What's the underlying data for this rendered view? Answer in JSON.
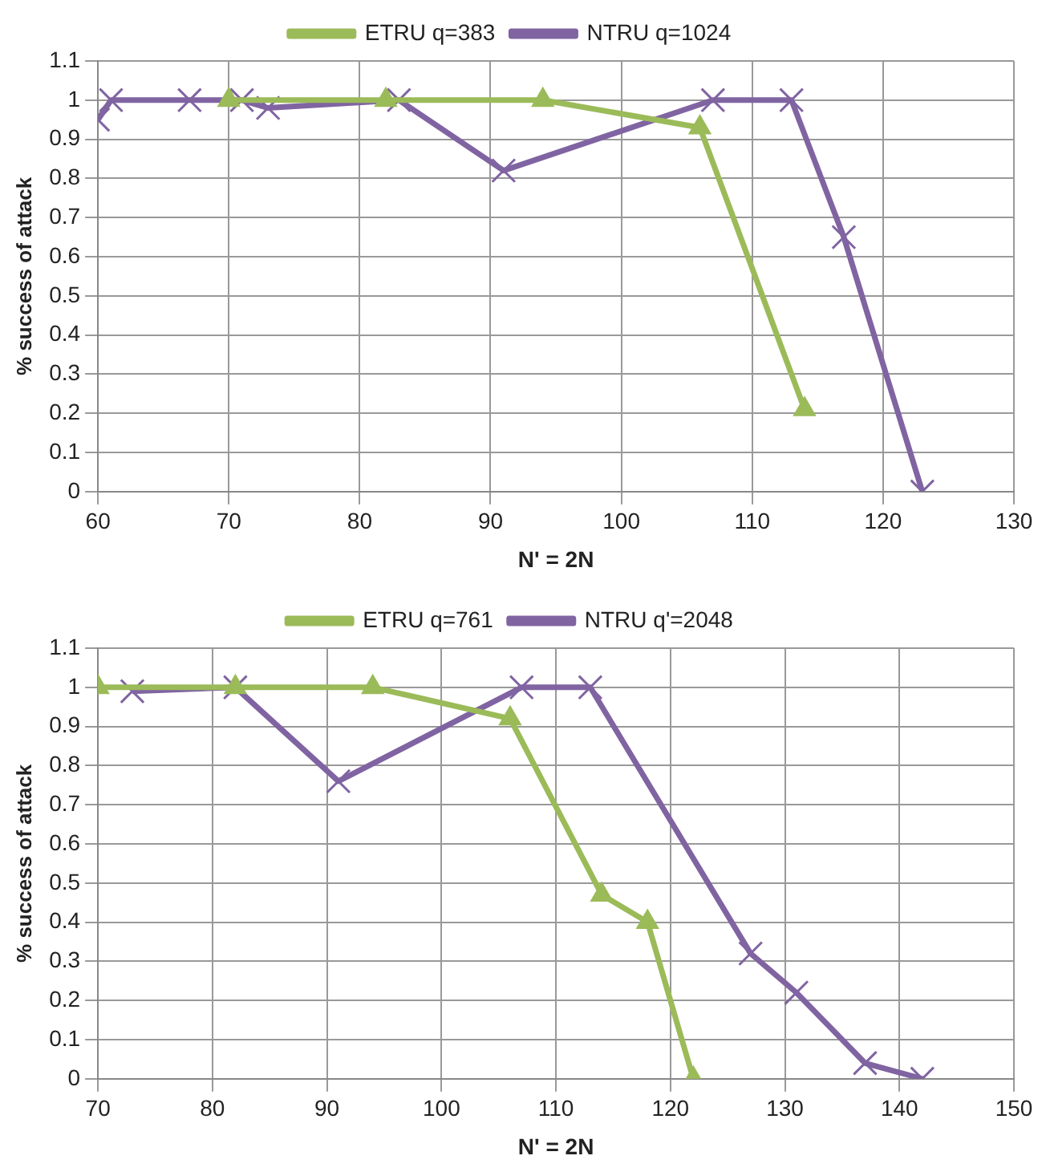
{
  "chart_data": [
    {
      "type": "line",
      "xlabel": "N' = 2N",
      "ylabel": "% success of attack",
      "legend": "top",
      "grid": true,
      "xlim": [
        60,
        130
      ],
      "xticks": [
        60,
        70,
        80,
        90,
        100,
        110,
        120,
        130
      ],
      "ylim": [
        0,
        1.1
      ],
      "yticks": [
        0,
        0.1,
        0.2,
        0.3,
        0.4,
        0.5,
        0.6,
        0.7,
        0.8,
        0.9,
        1,
        1.1
      ],
      "series": [
        {
          "name": "ETRU q=383",
          "color": "#9bbb59",
          "marker": "triangle",
          "x": [
            70,
            82,
            94,
            106,
            114
          ],
          "values": [
            1,
            1,
            1,
            0.93,
            0.21
          ]
        },
        {
          "name": "NTRU q=1024",
          "color": "#8064a2",
          "marker": "cross",
          "x": [
            60,
            61,
            67,
            71,
            73,
            83,
            91,
            107,
            113,
            117,
            123
          ],
          "values": [
            0.95,
            1,
            1,
            1,
            0.98,
            1,
            0.82,
            1,
            1,
            0.65,
            0
          ]
        }
      ]
    },
    {
      "type": "line",
      "xlabel": "N' = 2N",
      "ylabel": "% success of attack",
      "legend": "top",
      "grid": true,
      "xlim": [
        70,
        150
      ],
      "xticks": [
        70,
        80,
        90,
        100,
        110,
        120,
        130,
        140,
        150
      ],
      "ylim": [
        0,
        1.1
      ],
      "yticks": [
        0,
        0.1,
        0.2,
        0.3,
        0.4,
        0.5,
        0.6,
        0.7,
        0.8,
        0.9,
        1,
        1.1
      ],
      "series": [
        {
          "name": "ETRU q=761",
          "color": "#9bbb59",
          "marker": "triangle",
          "x": [
            70,
            82,
            94,
            106,
            114,
            118,
            122
          ],
          "values": [
            1,
            1,
            1,
            0.92,
            0.47,
            0.4,
            0
          ]
        },
        {
          "name": "NTRU q'=2048",
          "color": "#8064a2",
          "marker": "cross",
          "x": [
            73,
            82,
            91,
            107,
            113,
            127,
            131,
            137,
            142
          ],
          "values": [
            0.99,
            1,
            0.76,
            1,
            1,
            0.32,
            0.22,
            0.04,
            0
          ]
        }
      ]
    }
  ]
}
